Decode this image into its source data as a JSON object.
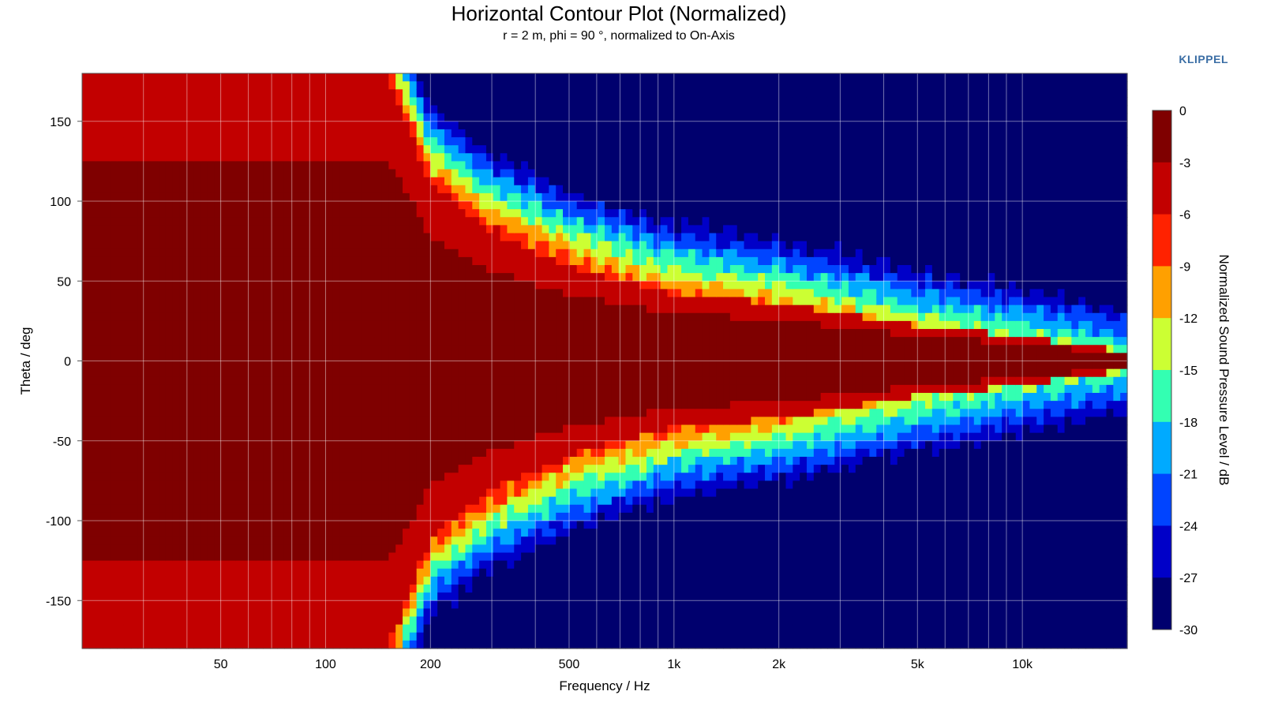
{
  "header": {
    "title": "Horizontal Contour Plot (Normalized)",
    "subtitle": "r = 2 m, phi = 90 °, normalized to On-Axis",
    "brand": "KLIPPEL"
  },
  "chart_data": {
    "type": "heatmap",
    "title": "Horizontal Contour Plot (Normalized)",
    "subtitle": "r = 2 m, phi = 90 °, normalized to On-Axis",
    "xlabel": "Frequency / Hz",
    "ylabel": "Theta / deg",
    "colorbar_label": "Normalized Sound Pressure Level / dB",
    "x_scale": "log",
    "xlim": [
      20,
      20000
    ],
    "ylim": [
      -180,
      180
    ],
    "x_ticks": [
      {
        "value": 50,
        "label": "50"
      },
      {
        "value": 100,
        "label": "100"
      },
      {
        "value": 200,
        "label": "200"
      },
      {
        "value": 500,
        "label": "500"
      },
      {
        "value": 1000,
        "label": "1k"
      },
      {
        "value": 2000,
        "label": "2k"
      },
      {
        "value": 5000,
        "label": "5k"
      },
      {
        "value": 10000,
        "label": "10k"
      }
    ],
    "y_ticks": [
      {
        "value": 150,
        "label": "150"
      },
      {
        "value": 100,
        "label": "100"
      },
      {
        "value": 50,
        "label": "50"
      },
      {
        "value": 0,
        "label": "0"
      },
      {
        "value": -50,
        "label": "-50"
      },
      {
        "value": -100,
        "label": "-100"
      },
      {
        "value": -150,
        "label": "-150"
      }
    ],
    "colorbar_range": [
      -30,
      0
    ],
    "colorbar_levels": [
      {
        "value": 0,
        "label": "0",
        "color": "#7f0000"
      },
      {
        "value": -3,
        "label": "-3",
        "color": "#c20000"
      },
      {
        "value": -6,
        "label": "-6",
        "color": "#ff2200"
      },
      {
        "value": -9,
        "label": "-9",
        "color": "#ffa000"
      },
      {
        "value": -12,
        "label": "-12",
        "color": "#ccff33"
      },
      {
        "value": -15,
        "label": "-15",
        "color": "#33ffb2"
      },
      {
        "value": -18,
        "label": "-18",
        "color": "#00aaff"
      },
      {
        "value": -21,
        "label": "-21",
        "color": "#0044ff"
      },
      {
        "value": -24,
        "label": "-24",
        "color": "#0000c8"
      },
      {
        "value": -27,
        "label": "-27",
        "color": "#00006e"
      },
      {
        "value": -30,
        "label": "-30",
        "color": "#00006e"
      }
    ],
    "approx_beamwidth_deg": [
      {
        "freq": 20,
        "half_angle": 180
      },
      {
        "freq": 150,
        "half_angle": 180
      },
      {
        "freq": 200,
        "half_angle": 110
      },
      {
        "freq": 300,
        "half_angle": 80
      },
      {
        "freq": 500,
        "half_angle": 58
      },
      {
        "freq": 1000,
        "half_angle": 42
      },
      {
        "freq": 2000,
        "half_angle": 36
      },
      {
        "freq": 3000,
        "half_angle": 30
      },
      {
        "freq": 5000,
        "half_angle": 22
      },
      {
        "freq": 10000,
        "half_angle": 15
      },
      {
        "freq": 20000,
        "half_angle": 6
      }
    ],
    "grid": true
  }
}
